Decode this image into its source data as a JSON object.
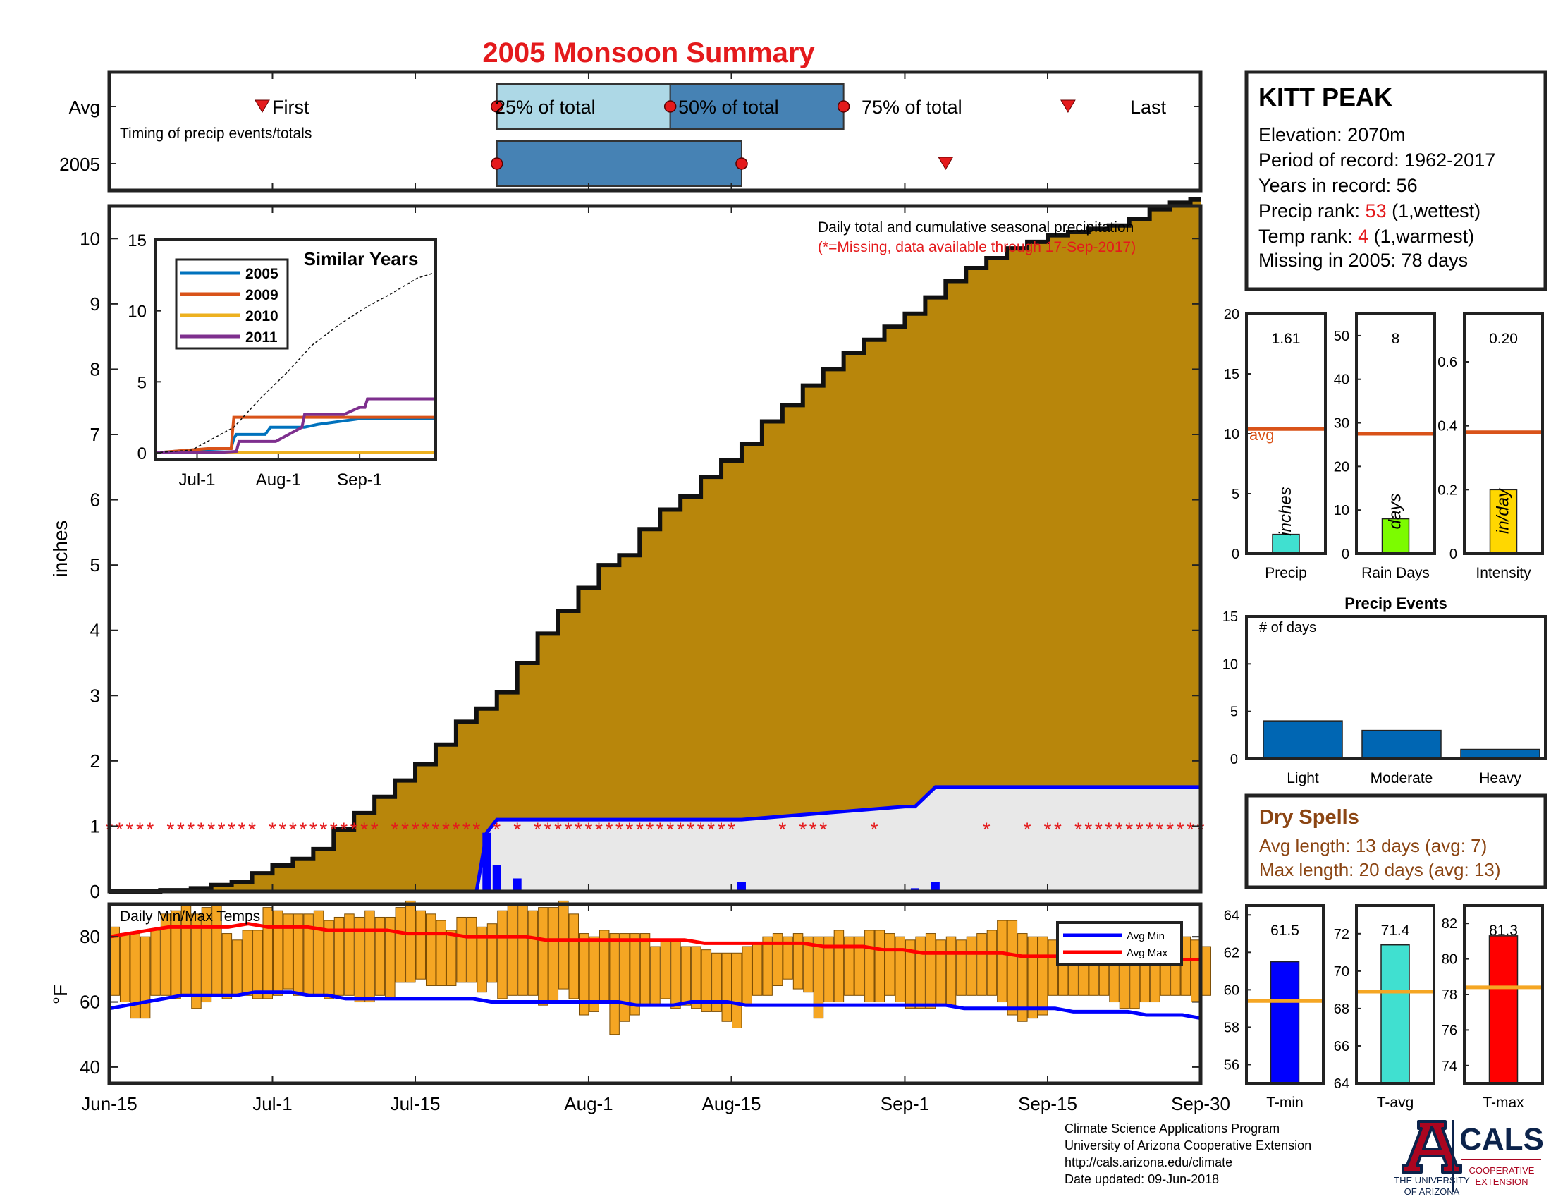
{
  "title": "2005 Monsoon Summary",
  "timing": {
    "row_labels": [
      "Avg",
      "2005"
    ],
    "caption": "Timing of precip events/totals",
    "avg": {
      "first": "First",
      "p25": "25% of total",
      "p50": "50% of total",
      "p75": "75% of total",
      "last": "Last",
      "first_day": 15,
      "p25_day": 38,
      "p50_day": 55,
      "p75_day": 72,
      "last_day": 94
    },
    "y2005": {
      "p25_day": 38,
      "p50_day": 62,
      "p75_day": 62,
      "last_day": 82
    }
  },
  "station": {
    "name": "KITT PEAK",
    "elevation": "Elevation: 2070m",
    "period": "Period of record: 1962-2017",
    "years": "Years in record: 56",
    "precip_rank_label": "Precip rank: ",
    "precip_rank_value": "53",
    "precip_rank_note": " (1,wettest)",
    "temp_rank_label": "Temp rank: ",
    "temp_rank_value": "4",
    "temp_rank_note": " (1,warmest)",
    "missing": "Missing in 2005: 78 days"
  },
  "x_ticks": [
    "Jun-15",
    "Jul-1",
    "Jul-15",
    "Aug-1",
    "Aug-15",
    "Sep-1",
    "Sep-15",
    "Sep-30"
  ],
  "x_tick_days": [
    0,
    16,
    30,
    47,
    61,
    78,
    92,
    107
  ],
  "main": {
    "note1": "Daily total and cumulative seasonal precipitation",
    "note2": "(*=Missing, data available through 17-Sep-2017)",
    "ylabel": "inches",
    "y_ticks": [
      "0",
      "1",
      "2",
      "3",
      "4",
      "5",
      "6",
      "7",
      "8",
      "9",
      "10"
    ],
    "ylim": [
      0,
      10.5
    ]
  },
  "inset": {
    "title": "Similar Years",
    "legend": [
      "2005",
      "2009",
      "2010",
      "2011"
    ],
    "y_ticks": [
      "0",
      "5",
      "10",
      "15"
    ],
    "x_ticks": [
      "Jul-1",
      "Aug-1",
      "Sep-1"
    ],
    "ylim": [
      0,
      15
    ]
  },
  "temps": {
    "label": "Daily Min/Max Temps",
    "ylabel": "°F",
    "y_ticks": [
      "40",
      "60",
      "80"
    ],
    "legend_min": "Avg Min",
    "legend_max": "Avg Max",
    "ylim": [
      35,
      90
    ]
  },
  "stat_bars": {
    "precip": {
      "value_label": "1.61",
      "unit": "inches",
      "avg_label": "avg",
      "xlabel": "Precip",
      "y_ticks": [
        "0",
        "5",
        "10",
        "15",
        "20"
      ]
    },
    "rain_days": {
      "value_label": "8",
      "unit": "days",
      "xlabel": "Rain Days",
      "y_ticks": [
        "0",
        "10",
        "20",
        "30",
        "40",
        "50"
      ]
    },
    "intensity": {
      "value_label": "0.20",
      "unit": "in/day",
      "xlabel": "Intensity",
      "y_ticks": [
        "0",
        "0.2",
        "0.4",
        "0.6"
      ]
    }
  },
  "events": {
    "title": "Precip Events",
    "ylabel_inner": "# of days",
    "y_ticks": [
      "0",
      "5",
      "10",
      "15"
    ]
  },
  "dry_spells": {
    "title": "Dry Spells",
    "avg_length": "Avg length: 13 days (avg: 7)",
    "max_length": "Max length: 20 days (avg: 13)"
  },
  "temp_bars": {
    "tmin": {
      "value_label": "61.5",
      "xlabel": "T-min",
      "y_ticks": [
        "56",
        "58",
        "60",
        "62",
        "64"
      ]
    },
    "tavg": {
      "value_label": "71.4",
      "xlabel": "T-avg",
      "y_ticks": [
        "64",
        "66",
        "68",
        "70",
        "72"
      ]
    },
    "tmax": {
      "value_label": "81.3",
      "xlabel": "T-max",
      "y_ticks": [
        "74",
        "76",
        "78",
        "80",
        "82"
      ]
    }
  },
  "credits": {
    "line1": "Climate Science Applications Program",
    "line2": "University of Arizona Cooperative Extension",
    "line3": "http://cals.arizona.edu/climate",
    "line4": " Date updated: 09-Jun-2018"
  },
  "logo": {
    "ua_line1": "THE UNIVERSITY",
    "ua_line2": "OF ARIZONA",
    "cals": "CALS",
    "cals_sub1": "COOPERATIVE",
    "cals_sub2": "EXTENSION"
  },
  "colors": {
    "title": "#e41a1c",
    "cum_fill": "#b8860b",
    "daily_bar": "#0000ff",
    "avg_line": "#d95319",
    "temp_bar": "#f5a623",
    "tmin": "#0000ff",
    "tavg": "#40e0d0",
    "tmax": "#ff0000",
    "dry_spell": "#8b4513",
    "timing_light": "#add8e6",
    "timing_dark": "#4682b4",
    "bar_blue": "#0066b3"
  },
  "chart_data": [
    {
      "type": "area",
      "name": "cumulative_precip_2005",
      "x_unit": "days since Jun-15",
      "x": [
        0,
        5,
        8,
        10,
        12,
        14,
        16,
        18,
        20,
        22,
        24,
        26,
        28,
        30,
        32,
        34,
        36,
        38,
        40,
        42,
        44,
        46,
        48,
        50,
        52,
        54,
        56,
        58,
        60,
        62,
        64,
        66,
        68,
        70,
        72,
        74,
        76,
        78,
        80,
        82,
        84,
        86,
        88,
        90,
        92,
        94,
        96,
        98,
        100,
        102,
        104,
        106,
        107
      ],
      "y": [
        0,
        0.02,
        0.05,
        0.1,
        0.15,
        0.28,
        0.4,
        0.5,
        0.65,
        0.95,
        1.2,
        1.45,
        1.7,
        1.95,
        2.25,
        2.6,
        2.8,
        3.05,
        3.5,
        3.95,
        4.3,
        4.65,
        5.0,
        5.15,
        5.55,
        5.85,
        6.05,
        6.35,
        6.6,
        6.85,
        7.2,
        7.45,
        7.75,
        8.0,
        8.25,
        8.45,
        8.65,
        8.85,
        9.1,
        9.35,
        9.55,
        9.7,
        9.85,
        9.95,
        10.05,
        10.1,
        10.15,
        10.2,
        10.3,
        10.45,
        10.55,
        10.6,
        10.6
      ]
    },
    {
      "type": "line",
      "name": "cumulative_precip_avg",
      "x_unit": "days since Jun-15",
      "x": [
        0,
        36,
        37,
        38,
        62,
        78,
        79,
        81,
        107
      ],
      "y": [
        0,
        0,
        0.9,
        1.1,
        1.1,
        1.3,
        1.3,
        1.6,
        1.6
      ]
    },
    {
      "type": "bar",
      "name": "daily_precip_2005",
      "x_unit": "days since Jun-15",
      "x": [
        37,
        38,
        40,
        62,
        79,
        81
      ],
      "y": [
        0.9,
        0.4,
        0.2,
        0.15,
        0.05,
        0.15
      ]
    },
    {
      "type": "scatter",
      "name": "missing_days",
      "x_unit": "days since Jun-15",
      "x": [
        0,
        1,
        2,
        3,
        4,
        6,
        7,
        8,
        9,
        10,
        11,
        12,
        13,
        14,
        16,
        17,
        18,
        19,
        20,
        21,
        22,
        23,
        24,
        25,
        26,
        28,
        29,
        30,
        31,
        32,
        33,
        34,
        35,
        36,
        38,
        40,
        42,
        43,
        44,
        45,
        46,
        47,
        48,
        49,
        50,
        51,
        52,
        53,
        54,
        55,
        56,
        57,
        58,
        59,
        60,
        61,
        66,
        68,
        69,
        70,
        75,
        86,
        90,
        92,
        93,
        95,
        96,
        97,
        98,
        99,
        100,
        101,
        102,
        103,
        104,
        105,
        106,
        107
      ],
      "y": 1
    },
    {
      "type": "line",
      "name": "similar_years",
      "x_unit": "days since Jun-15",
      "series": [
        {
          "name": "2005",
          "x": [
            0,
            14,
            29,
            30,
            31,
            42,
            44,
            57,
            62,
            78,
            107
          ],
          "y": [
            0,
            0.2,
            0.3,
            1,
            1.3,
            1.3,
            1.8,
            1.8,
            2,
            2.4,
            2.4
          ]
        },
        {
          "name": "2009",
          "x": [
            0,
            20,
            29,
            30,
            58,
            107
          ],
          "y": [
            0,
            0.3,
            0.3,
            2.5,
            2.5,
            2.5
          ]
        },
        {
          "name": "2010",
          "x": [
            0,
            107
          ],
          "y": [
            0,
            0
          ]
        },
        {
          "name": "2011",
          "x": [
            0,
            22,
            31,
            32,
            46,
            56,
            57,
            72,
            78,
            80,
            81,
            107
          ],
          "y": [
            0,
            0,
            0.1,
            0.8,
            0.8,
            1.8,
            2.7,
            2.7,
            3.2,
            3.2,
            3.8,
            3.8
          ]
        },
        {
          "name": "avg",
          "x": [
            0,
            14,
            30,
            40,
            50,
            60,
            70,
            80,
            90,
            100,
            107
          ],
          "y": [
            0,
            0.2,
            1.8,
            3.8,
            5.6,
            7.6,
            9.0,
            10.2,
            11.2,
            12.3,
            12.7
          ]
        }
      ]
    },
    {
      "type": "bar",
      "name": "daily_temps_2005",
      "x_unit": "days since Jun-15",
      "series": [
        {
          "name": "min",
          "values": [
            62,
            60,
            55,
            55,
            62,
            62,
            61,
            62,
            58,
            60,
            62,
            61,
            62,
            62,
            61,
            61,
            62,
            64,
            62,
            62,
            62,
            61,
            62,
            62,
            60,
            60,
            62,
            61,
            66,
            66,
            67,
            65,
            65,
            65,
            66,
            66,
            63,
            66,
            61,
            62,
            62,
            62,
            59,
            60,
            64,
            61,
            56,
            57,
            60,
            50,
            54,
            56,
            59,
            59,
            61,
            58,
            59,
            58,
            57,
            57,
            54,
            52,
            59,
            62,
            62,
            65,
            67,
            64,
            63,
            55,
            60,
            60,
            62,
            62,
            60,
            60,
            62,
            60,
            58,
            58,
            58,
            59,
            59,
            62,
            62,
            62,
            62,
            60,
            56,
            54,
            55,
            56,
            62,
            62,
            62,
            62,
            62,
            62,
            60,
            58,
            58,
            60,
            60,
            62,
            62,
            62,
            60,
            62
          ]
        },
        {
          "name": "max",
          "values": [
            83,
            81,
            81,
            80,
            82,
            87,
            88,
            90,
            87,
            89,
            90,
            81,
            79,
            82,
            82,
            89,
            88,
            87,
            87,
            87,
            88,
            85,
            86,
            87,
            86,
            88,
            86,
            86,
            89,
            91,
            88,
            87,
            85,
            82,
            86,
            86,
            83,
            84,
            88,
            90,
            90,
            88,
            89,
            89,
            91,
            87,
            81,
            80,
            82,
            81,
            81,
            81,
            81,
            77,
            79,
            79,
            77,
            77,
            76,
            75,
            75,
            75,
            77,
            78,
            80,
            81,
            80,
            81,
            80,
            80,
            80,
            82,
            80,
            80,
            82,
            82,
            81,
            80,
            79,
            80,
            81,
            79,
            80,
            79,
            80,
            81,
            82,
            85,
            85,
            81,
            80,
            80,
            79,
            79,
            79,
            80,
            79,
            82,
            82,
            78,
            78,
            80,
            79,
            79,
            80,
            80,
            79,
            77
          ]
        },
        {
          "name": "avg_min",
          "values": [
            58,
            59,
            60,
            61,
            62,
            62,
            62,
            62,
            63,
            63,
            63,
            62,
            62,
            61,
            61,
            61,
            61,
            61,
            61,
            61,
            61,
            60,
            60,
            60,
            60,
            60,
            60,
            60,
            60,
            59,
            59,
            59,
            60,
            60,
            60,
            59,
            59,
            59,
            59,
            59,
            59,
            59,
            59,
            59,
            59,
            59,
            59,
            58,
            58,
            58,
            58,
            58,
            58,
            57,
            57,
            57,
            57,
            56,
            56,
            56,
            55
          ]
        },
        {
          "name": "avg_max",
          "values": [
            80,
            81,
            82,
            83,
            83,
            83,
            83,
            84,
            83,
            83,
            83,
            82,
            82,
            82,
            82,
            81,
            81,
            81,
            80,
            80,
            80,
            80,
            79,
            79,
            79,
            79,
            79,
            79,
            79,
            79,
            78,
            78,
            78,
            78,
            78,
            78,
            77,
            77,
            77,
            76,
            76,
            75,
            75,
            75,
            75,
            75,
            74,
            74,
            74,
            74,
            74,
            74,
            74,
            73,
            73,
            73
          ]
        }
      ]
    },
    {
      "type": "bar",
      "name": "season_stats",
      "categories": [
        "Precip",
        "Rain Days",
        "Intensity"
      ],
      "values": [
        1.61,
        8,
        0.2
      ],
      "avg": [
        10.4,
        27.5,
        0.38
      ]
    },
    {
      "type": "bar",
      "name": "precip_events",
      "categories": [
        "Light",
        "Moderate",
        "Heavy"
      ],
      "values": [
        4,
        3,
        1
      ],
      "ylim": [
        0,
        15
      ]
    },
    {
      "type": "bar",
      "name": "season_temps",
      "categories": [
        "T-min",
        "T-avg",
        "T-max"
      ],
      "values": [
        61.5,
        71.4,
        81.3
      ],
      "avg": [
        59.4,
        68.9,
        78.4
      ]
    }
  ]
}
